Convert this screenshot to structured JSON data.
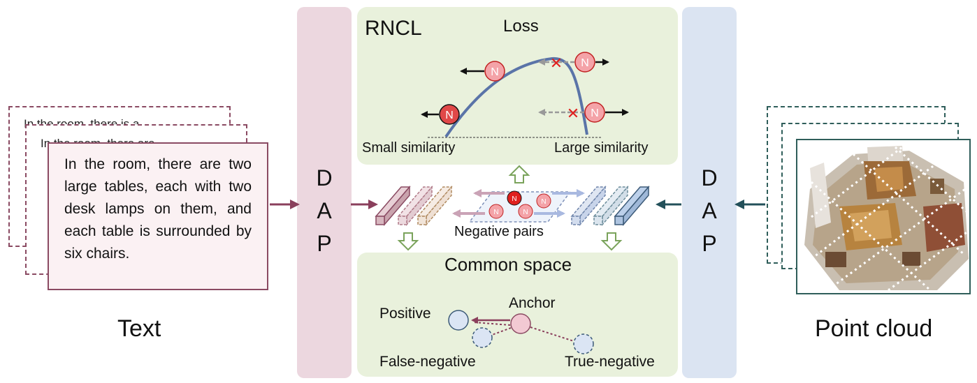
{
  "text_side": {
    "caption": "Text",
    "description": "In the room, there are two large tables, each with two desk lamps on them, and each table is surrounded by six chairs.",
    "ghost_back_line": "In the room, there is a",
    "ghost_mid_line": "In the room, there are"
  },
  "point_cloud_side": {
    "caption": "Point cloud"
  },
  "dap": {
    "letters": [
      "D",
      "A",
      "P"
    ]
  },
  "rncl": {
    "title": "RNCL",
    "loss_label": "Loss",
    "small_similarity": "Small similarity",
    "large_similarity": "Large similarity",
    "node_letter": "N"
  },
  "middle": {
    "negative_pairs": "Negative pairs"
  },
  "common_space": {
    "title": "Common space",
    "positive": "Positive",
    "anchor": "Anchor",
    "false_negative": "False-negative",
    "true_negative": "True-negative"
  },
  "colors": {
    "text_accent": "#8a4a62",
    "pc_accent": "#2f5e5a",
    "curve": "#5a74a8",
    "node_fill": "#f4a3a8",
    "node_red": "#e0201e",
    "panel_green": "#e9f1dc",
    "dap_left": "#ecd7df",
    "dap_right": "#dbe4f2"
  }
}
